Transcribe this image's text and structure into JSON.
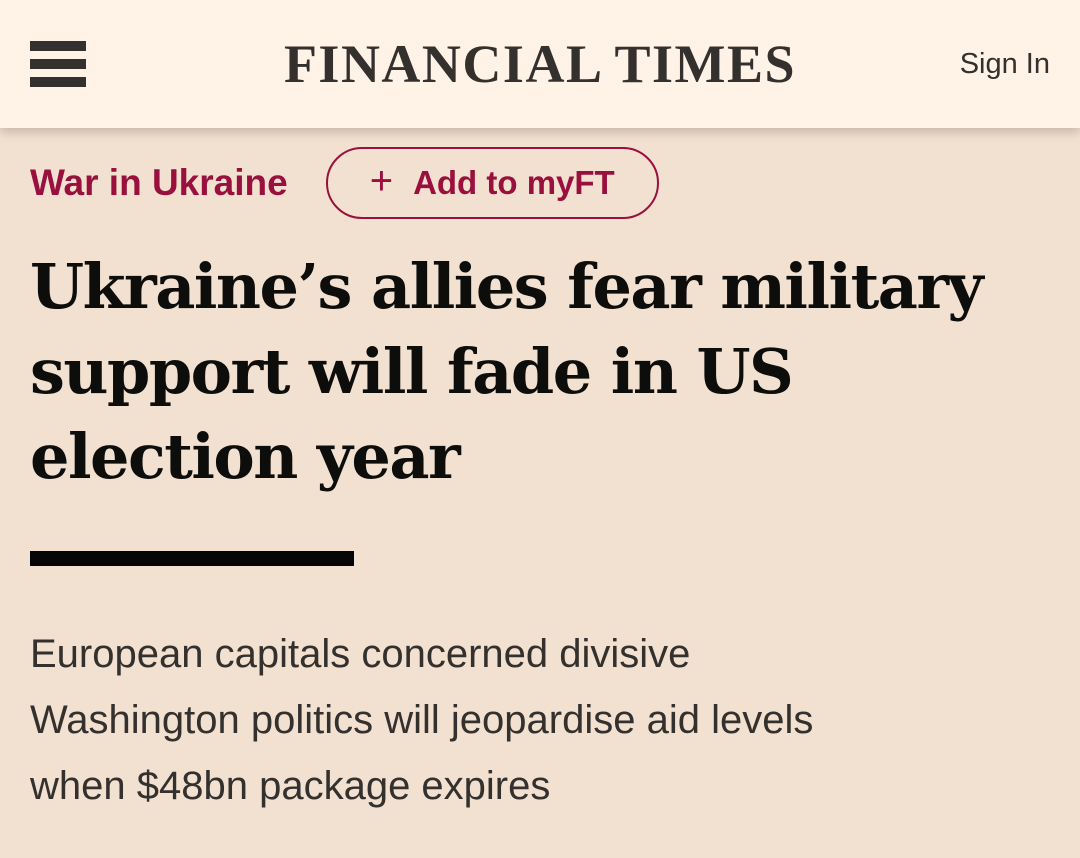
{
  "header": {
    "masthead": "FINANCIAL TIMES",
    "sign_in_label": "Sign In"
  },
  "topic": {
    "tag_label": "War in Ukraine",
    "add_button": {
      "plus": "+",
      "label": "Add to myFT"
    }
  },
  "article": {
    "headline_lines": {
      "0": "Ukraine’s allies fear military",
      "1": "support will fade in US",
      "2": "election year"
    },
    "standfirst_lines": {
      "0": "European capitals concerned divisive",
      "1": "Washington politics will jeopardise aid levels",
      "2": "when $48bn package expires"
    }
  },
  "colors": {
    "claret": "#990F3D",
    "header_background": "#FFF2E7",
    "body_background": "#F2E1D0",
    "text_dark": "#33302E",
    "headline_black": "#0D0D0C"
  }
}
